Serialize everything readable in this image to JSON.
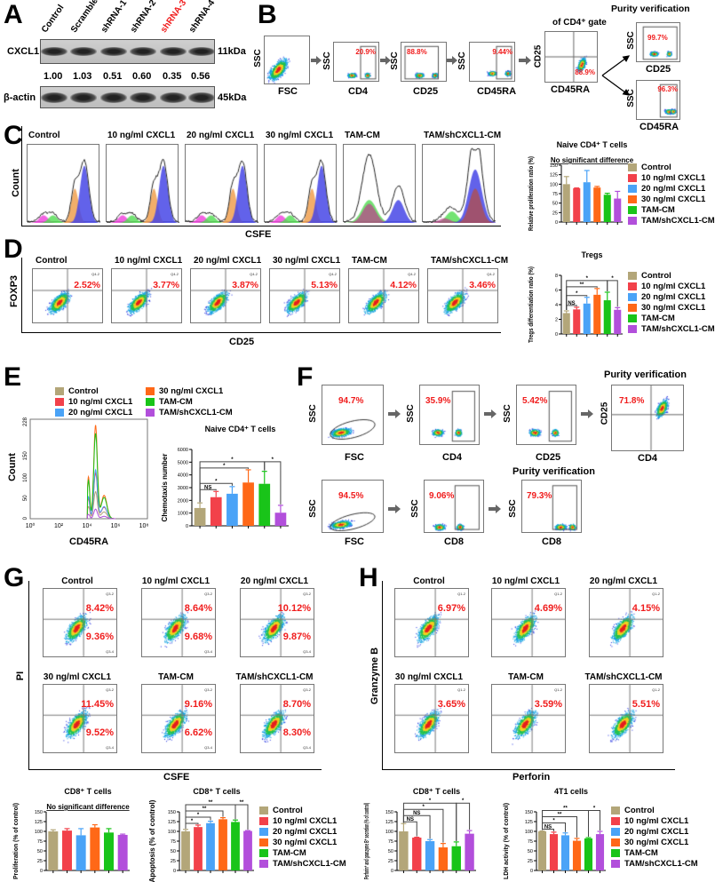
{
  "panels": {
    "A": "A",
    "B": "B",
    "C": "C",
    "D": "D",
    "E": "E",
    "F": "F",
    "G": "G",
    "H": "H"
  },
  "groups": [
    "Control",
    "10 ng/ml CXCL1",
    "20 ng/ml CXCL1",
    "30 ng/ml CXCL1",
    "TAM-CM",
    "TAM/shCXCL1-CM"
  ],
  "colors": [
    "#b3a679",
    "#f2414a",
    "#4aa3f7",
    "#ff6817",
    "#19c419",
    "#b24fdb"
  ],
  "panelA": {
    "lanes": [
      "Control",
      "Scramble",
      "shRNA-1",
      "shRNA-2",
      "shRNA-3",
      "shRNA-4"
    ],
    "highlight_lane_color": "#f01c1c",
    "cxcl1_label": "CXCL1",
    "cxcl1_size": "11kDa",
    "actin_label": "β-actin",
    "actin_size": "45kDa",
    "ratios": [
      "1.00",
      "1.03",
      "0.51",
      "0.60",
      "0.35",
      "0.56"
    ]
  },
  "panelB": {
    "axes": {
      "fsc": "FSC",
      "ssc": "SSC",
      "cd4": "CD4",
      "cd25": "CD25",
      "cd45ra": "CD45RA"
    },
    "gate_title": "of CD4⁺ gate",
    "purity_title": "Purity verification",
    "pcts": [
      "20.9%",
      "88.8%",
      "9.44%",
      "88.9%",
      "99.7%",
      "96.3%"
    ]
  },
  "panelC": {
    "titles": [
      "Control",
      "10 ng/ml CXCL1",
      "20 ng/ml CXCL1",
      "30 ng/ml CXCL1",
      "TAM-CM",
      "TAM/shCXCL1-CM"
    ],
    "ylabel": "Count",
    "xlabel": "CSFE"
  },
  "panelD": {
    "titles": [
      "Control",
      "10 ng/ml CXCL1",
      "20 ng/ml CXCL1",
      "30 ng/ml CXCL1",
      "TAM-CM",
      "TAM/shCXCL1-CM"
    ],
    "ylabel": "FOXP3",
    "xlabel": "CD25",
    "quad_label": "Q4-2",
    "pcts": [
      "2.52%",
      "3.77%",
      "3.87%",
      "5.13%",
      "4.12%",
      "3.46%"
    ]
  },
  "panelE": {
    "hist_ylabel": "Count",
    "hist_xlabel": "CD45RA",
    "hist_yticks": [
      "0",
      "50",
      "100",
      "150",
      "228"
    ],
    "hist_xticks": [
      "10⁰",
      "10²",
      "10⁴",
      "10⁶",
      "10⁸"
    ]
  },
  "panelF": {
    "purity_title": "Purity verification",
    "axes": {
      "fsc": "FSC",
      "ssc": "SSC",
      "cd4": "CD4",
      "cd25": "CD25",
      "cd8": "CD8"
    },
    "pcts_row1": [
      "94.7%",
      "35.9%",
      "5.42%",
      "71.8%"
    ],
    "pcts_row2": [
      "94.5%",
      "9.06%",
      "79.3%"
    ]
  },
  "panelG": {
    "titles": [
      "Control",
      "10 ng/ml CXCL1",
      "20 ng/ml CXCL1",
      "30 ng/ml CXCL1",
      "TAM-CM",
      "TAM/shCXCL1-CM"
    ],
    "ylabel": "PI",
    "xlabel": "CSFE",
    "upper_label": "Q3-2",
    "lower_label": "Q3-4",
    "upper_pcts": [
      "8.42%",
      "8.64%",
      "10.12%",
      "11.45%",
      "9.16%",
      "8.70%"
    ],
    "lower_pcts": [
      "9.36%",
      "9.68%",
      "9.87%",
      "9.52%",
      "6.62%",
      "8.30%"
    ]
  },
  "panelH": {
    "titles": [
      "Control",
      "10 ng/ml CXCL1",
      "20 ng/ml CXCL1",
      "30 ng/ml CXCL1",
      "TAM-CM",
      "TAM/shCXCL1-CM"
    ],
    "ylabel": "Granzyme B",
    "xlabel": "Perforin",
    "quad_label": "Q1-2",
    "pcts": [
      "6.97%",
      "4.69%",
      "4.15%",
      "3.65%",
      "3.59%",
      "5.51%"
    ]
  },
  "chart_data": [
    {
      "id": "C",
      "type": "bar",
      "title": "Naive CD4⁺ T cells",
      "ylabel": "Relative proliferation ratio (%)",
      "note": "No significant difference",
      "categories": [
        "Control",
        "10 ng/ml CXCL1",
        "20 ng/ml CXCL1",
        "30 ng/ml CXCL1",
        "TAM-CM",
        "TAM/shCXCL1-CM"
      ],
      "values": [
        100,
        89,
        105,
        91,
        72,
        62
      ],
      "errors": [
        20,
        1,
        31,
        3,
        4,
        19
      ],
      "ylim": [
        0,
        150
      ],
      "yticks": [
        0,
        25,
        50,
        75,
        100,
        125,
        150
      ],
      "legend": "right",
      "comparisons": []
    },
    {
      "id": "D",
      "type": "bar",
      "title": "Tregs",
      "ylabel": "Tregs differentiation ratio (%)",
      "categories": [
        "Control",
        "10 ng/ml CXCL1",
        "20 ng/ml CXCL1",
        "30 ng/ml CXCL1",
        "TAM-CM",
        "TAM/shCXCL1-CM"
      ],
      "values": [
        2.85,
        3.35,
        4.15,
        5.35,
        4.6,
        3.3
      ],
      "errors": [
        0.3,
        0.3,
        0.85,
        0.85,
        1.1,
        0.3
      ],
      "ylim": [
        0,
        8
      ],
      "yticks": [
        0,
        2,
        4,
        6,
        8
      ],
      "legend": "right",
      "comparisons": [
        {
          "a": 0,
          "b": 1,
          "label": "NS"
        },
        {
          "a": 0,
          "b": 2,
          "label": "*"
        },
        {
          "a": 0,
          "b": 3,
          "label": "**"
        },
        {
          "a": 0,
          "b": 4,
          "label": "*"
        },
        {
          "a": 4,
          "b": 5,
          "label": "*"
        }
      ]
    },
    {
      "id": "E",
      "type": "bar",
      "title": "Naive CD4⁺ T cells",
      "ylabel": "Chemotaxis number",
      "categories": [
        "Control",
        "10 ng/ml CXCL1",
        "20 ng/ml CXCL1",
        "30 ng/ml CXCL1",
        "TAM-CM",
        "TAM/shCXCL1-CM"
      ],
      "values": [
        1400,
        2250,
        2520,
        3400,
        3300,
        1030
      ],
      "errors": [
        400,
        450,
        560,
        1000,
        980,
        580
      ],
      "ylim": [
        0,
        6000
      ],
      "yticks": [
        0,
        1000,
        2000,
        3000,
        4000,
        5000,
        6000
      ],
      "legend": "top",
      "comparisons": [
        {
          "a": 0,
          "b": 1,
          "label": "NS"
        },
        {
          "a": 0,
          "b": 2,
          "label": "*"
        },
        {
          "a": 0,
          "b": 3,
          "label": "*"
        },
        {
          "a": 0,
          "b": 4,
          "label": "*"
        },
        {
          "a": 4,
          "b": 5,
          "label": "*"
        }
      ]
    },
    {
      "id": "G1",
      "type": "bar",
      "title": "CD8⁺ T cells",
      "ylabel": "Proliferation (% of control)",
      "note": "No significant difference",
      "categories": [
        "Control",
        "10 ng/ml CXCL1",
        "20 ng/ml CXCL1",
        "30 ng/ml CXCL1",
        "TAM-CM",
        "TAM/shCXCL1-CM"
      ],
      "values": [
        100,
        102,
        90,
        110,
        97,
        91
      ],
      "errors": [
        4,
        5,
        17,
        7,
        10,
        2
      ],
      "ylim": [
        0,
        150
      ],
      "yticks": [
        0,
        25,
        50,
        75,
        100,
        125,
        150
      ],
      "comparisons": []
    },
    {
      "id": "G2",
      "type": "bar",
      "title": "CD8⁺ T cells",
      "ylabel": "Apoptosis (% of control)",
      "categories": [
        "Control",
        "10 ng/ml CXCL1",
        "20 ng/ml CXCL1",
        "30 ng/ml CXCL1",
        "TAM-CM",
        "TAM/shCXCL1-CM"
      ],
      "values": [
        100,
        111,
        121,
        131,
        124,
        101
      ],
      "errors": [
        5,
        5,
        5,
        4,
        5,
        1
      ],
      "ylim": [
        0,
        150
      ],
      "yticks": [
        0,
        25,
        50,
        75,
        100,
        125,
        150
      ],
      "legend": "right",
      "comparisons": [
        {
          "a": 0,
          "b": 1,
          "label": "*"
        },
        {
          "a": 0,
          "b": 2,
          "label": "*"
        },
        {
          "a": 0,
          "b": 3,
          "label": "**"
        },
        {
          "a": 0,
          "b": 4,
          "label": "**"
        },
        {
          "a": 4,
          "b": 5,
          "label": "**"
        }
      ]
    },
    {
      "id": "H1",
      "type": "bar",
      "title": "CD8⁺ T cells",
      "ylabel": "Perforin⁺ and granzyme B⁺ secretion (% of control)",
      "categories": [
        "Control",
        "10 ng/ml CXCL1",
        "20 ng/ml CXCL1",
        "30 ng/ml CXCL1",
        "TAM-CM",
        "TAM/shCXCL1-CM"
      ],
      "values": [
        100,
        84,
        75,
        59,
        62,
        94
      ],
      "errors": [
        20,
        1,
        4,
        10,
        11,
        8
      ],
      "ylim": [
        0,
        150
      ],
      "yticks": [
        0,
        25,
        50,
        75,
        100,
        125,
        150
      ],
      "comparisons": [
        {
          "a": 0,
          "b": 1,
          "label": "NS"
        },
        {
          "a": 0,
          "b": 2,
          "label": "NS"
        },
        {
          "a": 0,
          "b": 3,
          "label": "*"
        },
        {
          "a": 0,
          "b": 4,
          "label": "*"
        },
        {
          "a": 4,
          "b": 5,
          "label": "*"
        }
      ]
    },
    {
      "id": "H2",
      "type": "bar",
      "title": "4T1 cells",
      "ylabel": "LDH activity (% of control)",
      "categories": [
        "Control",
        "10 ng/ml CXCL1",
        "20 ng/ml CXCL1",
        "30 ng/ml CXCL1",
        "TAM-CM",
        "TAM/shCXCL1-CM"
      ],
      "values": [
        100,
        93,
        90,
        76,
        82,
        93
      ],
      "errors": [
        1,
        5,
        6,
        6,
        2,
        7
      ],
      "ylim": [
        0,
        150
      ],
      "yticks": [
        0,
        25,
        50,
        75,
        100,
        125,
        150
      ],
      "legend": "right",
      "comparisons": [
        {
          "a": 0,
          "b": 1,
          "label": "NS"
        },
        {
          "a": 0,
          "b": 2,
          "label": "*"
        },
        {
          "a": 0,
          "b": 3,
          "label": "**"
        },
        {
          "a": 0,
          "b": 4,
          "label": "**"
        },
        {
          "a": 4,
          "b": 5,
          "label": "*"
        }
      ]
    }
  ]
}
